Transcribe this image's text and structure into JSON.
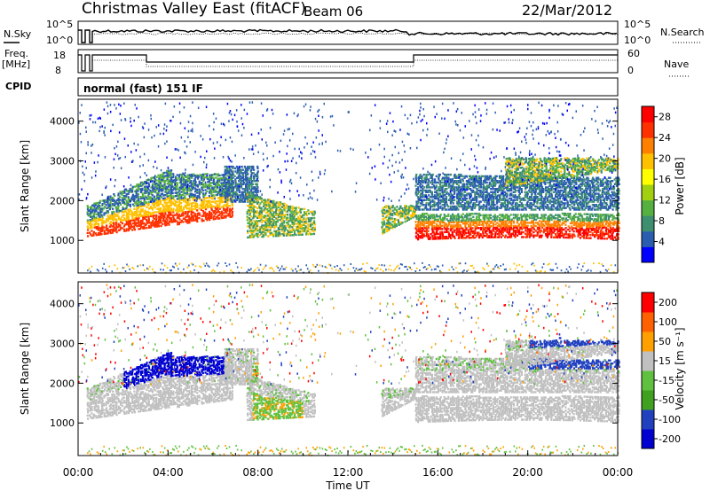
{
  "header": {
    "title": "Christmas Valley East (fitACF)",
    "beam": "Beam 06",
    "date": "22/Mar/2012"
  },
  "top_panels": {
    "nsky_label": "N.Sky",
    "nsearch_label": "N.Search",
    "freq_label": "Freq.",
    "freq_unit": "[MHz]",
    "nave_label": "Nave",
    "cpid_label": "CPID",
    "cpid_text": "normal (fast) 151 IF",
    "noise_left_ticks": [
      "10^5",
      "10^0"
    ],
    "noise_right_ticks": [
      "10^5",
      "10^0"
    ],
    "freq_left_ticks": [
      "18",
      "8"
    ],
    "freq_right_ticks": [
      "60",
      "0"
    ]
  },
  "chart_data": [
    {
      "type": "heatmap",
      "name": "Power",
      "ylabel": "Slant Range [km]",
      "yticks": [
        1000,
        2000,
        3000,
        4000
      ],
      "ylim": [
        180,
        4550
      ],
      "xlim": [
        0,
        24
      ],
      "colorbar_label": "Power [dB]",
      "colorbar_ticks": [
        "28",
        "24",
        "20",
        "16",
        "12",
        "8",
        "4"
      ],
      "colorbar_range": [
        0,
        30
      ],
      "colors": [
        "#0000ff",
        "#2a5db0",
        "#3d8f6f",
        "#55b040",
        "#a0d010",
        "#ffff00",
        "#ffc000",
        "#ff8000",
        "#ff3000",
        "#ff0000"
      ]
    },
    {
      "type": "heatmap",
      "name": "Velocity",
      "ylabel": "Slant Range [km]",
      "yticks": [
        1000,
        2000,
        3000,
        4000
      ],
      "ylim": [
        180,
        4550
      ],
      "xlim": [
        0,
        24
      ],
      "xlabel": "Time UT",
      "xtick_labels": [
        "00:00",
        "04:00",
        "08:00",
        "12:00",
        "16:00",
        "20:00",
        "00:00"
      ],
      "colorbar_label": "Velocity [m s⁻¹]",
      "colorbar_ticks": [
        "200",
        "100",
        "50",
        "15",
        "-15",
        "-50",
        "-100",
        "-200"
      ],
      "colors": [
        "#0000d0",
        "#2040c0",
        "#40a020",
        "#60c040",
        "#c0c0c0",
        "#ffa000",
        "#ff6000",
        "#ff0000"
      ]
    }
  ]
}
